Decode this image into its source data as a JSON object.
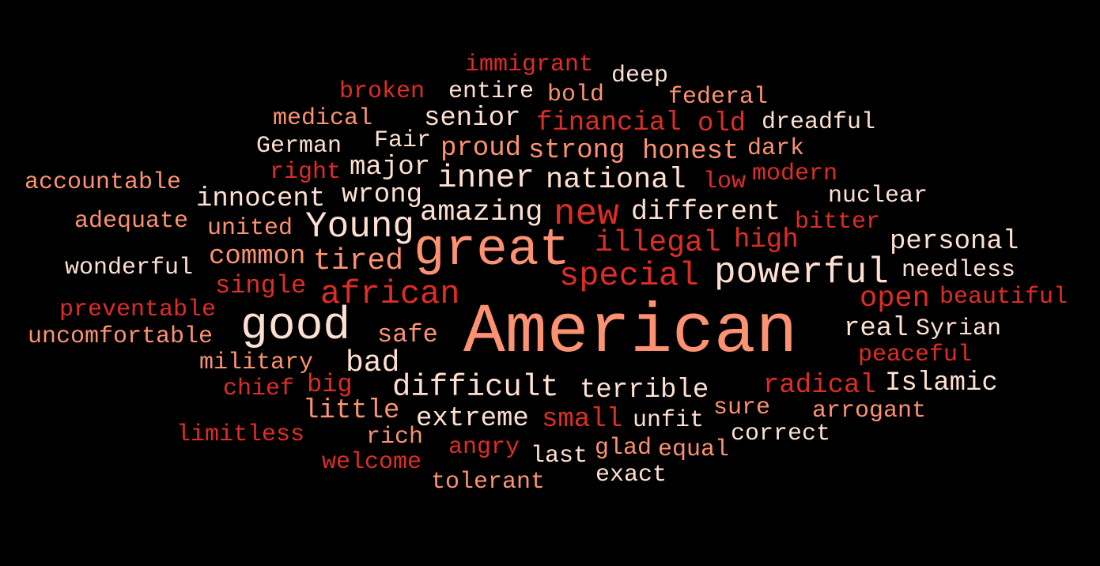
{
  "palette": {
    "background": "#000000",
    "light": "#fee0d2",
    "salmon": "#fc9272",
    "red": "#de2d26"
  },
  "words": {
    "american": "American",
    "great": "great",
    "good": "good",
    "special": "special",
    "powerful": "powerful",
    "young": "Young",
    "new": "new",
    "african": "african",
    "illegal": "illegal",
    "inner": "inner",
    "national": "national",
    "amazing": "amazing",
    "difficult": "difficult",
    "different": "different",
    "tired": "tired",
    "bad": "bad",
    "open": "open",
    "personal": "personal",
    "innocent": "innocent",
    "high": "high",
    "strong": "strong",
    "honest": "honest",
    "wrong": "wrong",
    "terrible": "terrible",
    "islamic": "Islamic",
    "common": "common",
    "major": "major",
    "financial": "financial",
    "extreme": "extreme",
    "real": "real",
    "little": "little",
    "proud": "proud",
    "radical": "radical",
    "small": "small",
    "single": "single",
    "old": "old",
    "senior": "senior",
    "safe": "safe",
    "syrian": "Syrian",
    "immigrant": "immigrant",
    "broken": "broken",
    "entire": "entire",
    "bold": "bold",
    "deep": "deep",
    "federal": "federal",
    "dreadful": "dreadful",
    "medical": "medical",
    "german": "German",
    "fair": "Fair",
    "dark": "dark",
    "modern": "modern",
    "right": "right",
    "accountable": "accountable",
    "low": "low",
    "nuclear": "nuclear",
    "adequate": "adequate",
    "united": "united",
    "bitter": "bitter",
    "wonderful": "wonderful",
    "needless": "needless",
    "preventable": "preventable",
    "beautiful": "beautiful",
    "uncomfortable": "uncomfortable",
    "military": "military",
    "peaceful": "peaceful",
    "chief": "chief",
    "big": "big",
    "unfit": "unfit",
    "sure": "sure",
    "arrogant": "arrogant",
    "limitless": "limitless",
    "rich": "rich",
    "angry": "angry",
    "last": "last",
    "glad": "glad",
    "equal": "equal",
    "correct": "correct",
    "welcome": "welcome",
    "tolerant": "tolerant",
    "exact": "exact"
  }
}
